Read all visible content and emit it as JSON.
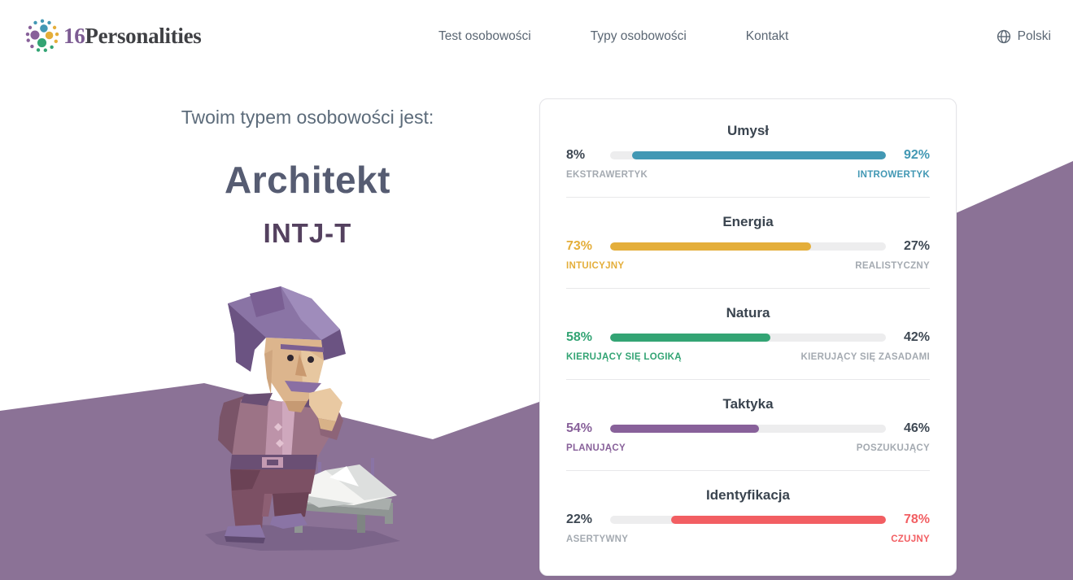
{
  "header": {
    "logo": {
      "number": "16",
      "word": "Personalities",
      "mark_colors": {
        "teal": "#4298b4",
        "yellow": "#e4ae3a",
        "green": "#33a474",
        "purple": "#88619a"
      }
    },
    "nav": [
      {
        "label": "Test osobowości"
      },
      {
        "label": "Typy osobowości"
      },
      {
        "label": "Kontakt"
      }
    ],
    "language": {
      "label": "Polski",
      "icon": "globe-icon"
    }
  },
  "result": {
    "intro": "Twoim typem osobowości jest:",
    "type_name": "Architekt",
    "type_code": "INTJ-T",
    "illustration": "low-poly architect character with purple hair and mustache, hand on chin, standing beside a drafting table with a white model"
  },
  "colors": {
    "background_mountain": "#8b7296",
    "heading_dark": "#565c72",
    "type_code_purple": "#54415f",
    "muted_label": "#a4aab1",
    "bar_track": "#ededee"
  },
  "chart_data": {
    "type": "bar",
    "title": "Personality trait sliders",
    "legend_position": "none",
    "traits": [
      {
        "name": "Umysł",
        "left_value": 8,
        "right_value": 92,
        "left_pct": "8%",
        "right_pct": "92%",
        "left_label": "EKSTRAWERTYK",
        "right_label": "INTROWERTYK",
        "dominant": "right",
        "color": "#4298b4"
      },
      {
        "name": "Energia",
        "left_value": 73,
        "right_value": 27,
        "left_pct": "73%",
        "right_pct": "27%",
        "left_label": "INTUICYJNY",
        "right_label": "REALISTYCZNY",
        "dominant": "left",
        "color": "#e4ae3a"
      },
      {
        "name": "Natura",
        "left_value": 58,
        "right_value": 42,
        "left_pct": "58%",
        "right_pct": "42%",
        "left_label": "KIERUJĄCY SIĘ LOGIKĄ",
        "right_label": "KIERUJĄCY SIĘ ZASADAMI",
        "dominant": "left",
        "color": "#33a474"
      },
      {
        "name": "Taktyka",
        "left_value": 54,
        "right_value": 46,
        "left_pct": "54%",
        "right_pct": "46%",
        "left_label": "PLANUJĄCY",
        "right_label": "POSZUKUJĄCY",
        "dominant": "left",
        "color": "#88619a"
      },
      {
        "name": "Identyfikacja",
        "left_value": 22,
        "right_value": 78,
        "left_pct": "22%",
        "right_pct": "78%",
        "left_label": "ASERTYWNY",
        "right_label": "CZUJNY",
        "dominant": "right",
        "color": "#f25e62"
      }
    ]
  }
}
